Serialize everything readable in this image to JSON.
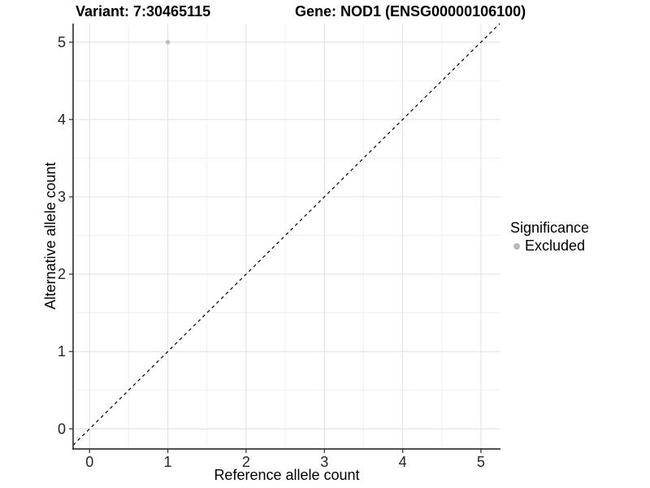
{
  "figure": {
    "background": "#ffffff"
  },
  "chart_data": {
    "type": "scatter",
    "titles": {
      "left": "Variant: 7:30465115",
      "right": "Gene: NOD1 (ENSG00000106100)"
    },
    "xlabel": "Reference allele count",
    "ylabel": "Alternative allele count",
    "xlim": [
      -0.21,
      5.25
    ],
    "ylim": [
      -0.26,
      5.24
    ],
    "xticks": [
      0,
      1,
      2,
      3,
      4,
      5
    ],
    "yticks": [
      0,
      1,
      2,
      3,
      4,
      5
    ],
    "minor_xticks": [
      0.5,
      1.5,
      2.5,
      3.5,
      4.5
    ],
    "minor_yticks": [
      0.5,
      1.5,
      2.5,
      3.5,
      4.5
    ],
    "grid": "major+minor",
    "identity_line": {
      "slope": 1,
      "intercept": 0,
      "style": "dashed",
      "color": "#000000"
    },
    "series": [
      {
        "name": "Excluded",
        "color": "#bfbfbf",
        "point_radius": 2.8,
        "points": [
          {
            "x": 1,
            "y": 5
          }
        ]
      }
    ],
    "legend": {
      "title": "Significance",
      "position": "right",
      "entries": [
        {
          "label": "Excluded",
          "color": "#b9b9b9"
        }
      ]
    },
    "colors": {
      "grid_major": "#e3e3e3",
      "grid_minor": "#f1f1f1",
      "axis": "#383838",
      "tick_label": "#262626",
      "text": "#000000"
    }
  }
}
